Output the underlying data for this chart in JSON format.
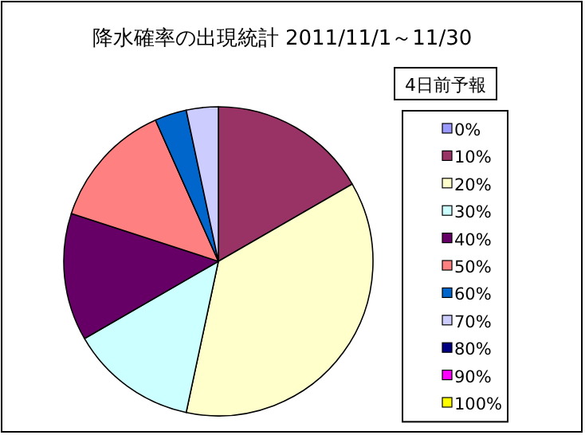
{
  "chart_data": {
    "type": "pie",
    "title": "降水確率の出現統計 2011/11/1～11/30",
    "legend_title": "4日前予報",
    "legend": "right",
    "categories": [
      "0%",
      "10%",
      "20%",
      "30%",
      "40%",
      "50%",
      "60%",
      "70%",
      "80%",
      "90%",
      "100%"
    ],
    "values": [
      0,
      16.67,
      36.67,
      13.33,
      13.33,
      13.33,
      3.33,
      3.34,
      0,
      0,
      0
    ],
    "colors": [
      "#9999ff",
      "#993366",
      "#ffffcc",
      "#ccffff",
      "#660066",
      "#ff8080",
      "#0066cc",
      "#ccccff",
      "#000080",
      "#ff00ff",
      "#ffff00"
    ]
  }
}
